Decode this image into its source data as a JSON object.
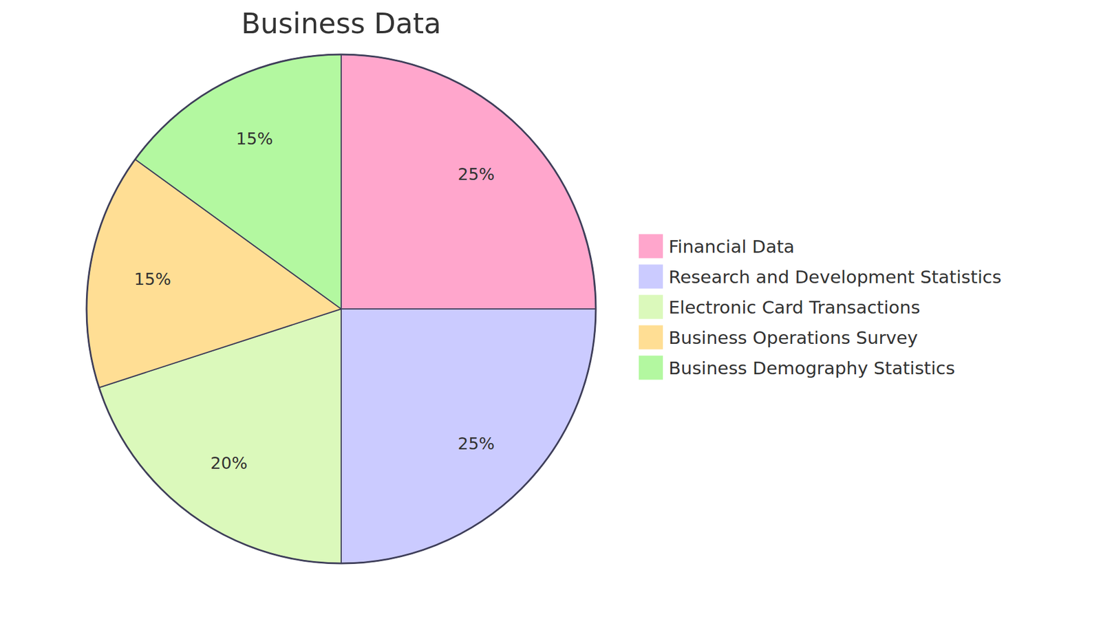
{
  "chart_data": {
    "type": "pie",
    "title": "Business Data",
    "categories": [
      "Financial Data",
      "Research and Development Statistics",
      "Electronic Card Transactions",
      "Business Operations Survey",
      "Business Demography Statistics"
    ],
    "values": [
      25,
      25,
      20,
      15,
      15
    ],
    "value_labels": [
      "25%",
      "25%",
      "20%",
      "15%",
      "15%"
    ],
    "colors": [
      "#ffa6cc",
      "#cbcbff",
      "#dbf9bb",
      "#ffde94",
      "#b3f8a0"
    ],
    "data_labels": true,
    "legend": "right"
  }
}
